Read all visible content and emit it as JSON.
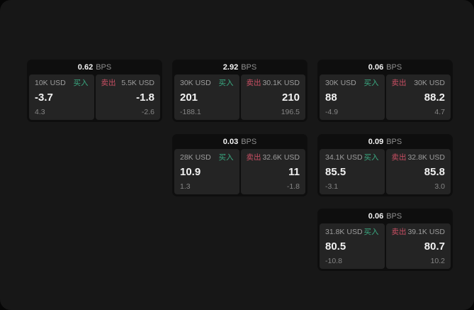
{
  "window": {
    "background": "#060606",
    "panel_background": "#171717"
  },
  "colors": {
    "buy_green": "#3aa981",
    "sell_red": "#c94f63",
    "card_bg": "#0e0e0e",
    "pane_bg": "#242424",
    "value_white": "#f2f2f2",
    "label_gray": "#9d9d9d",
    "sub_gray": "#858585"
  },
  "labels": {
    "bps_unit": "BPS",
    "buy": "买入",
    "sell": "卖出"
  },
  "cards": [
    {
      "bps": "0.62",
      "row": 1,
      "col": 1,
      "buy": {
        "amount": "10K USD",
        "value": "-3.7",
        "sub": "4.3"
      },
      "sell": {
        "amount": "5.5K USD",
        "value": "-1.8",
        "sub": "-2.6"
      }
    },
    {
      "bps": "2.92",
      "row": 1,
      "col": 2,
      "buy": {
        "amount": "30K USD",
        "value": "201",
        "sub": "-188.1"
      },
      "sell": {
        "amount": "30.1K USD",
        "value": "210",
        "sub": "196.5"
      }
    },
    {
      "bps": "0.06",
      "row": 1,
      "col": 3,
      "buy": {
        "amount": "30K USD",
        "value": "88",
        "sub": "-4.9"
      },
      "sell": {
        "amount": "30K USD",
        "value": "88.2",
        "sub": "4.7"
      }
    },
    {
      "bps": "0.03",
      "row": 2,
      "col": 2,
      "buy": {
        "amount": "28K USD",
        "value": "10.9",
        "sub": "1.3"
      },
      "sell": {
        "amount": "32.6K USD",
        "value": "11",
        "sub": "-1.8"
      }
    },
    {
      "bps": "0.09",
      "row": 2,
      "col": 3,
      "buy": {
        "amount": "34.1K USD",
        "value": "85.5",
        "sub": "-3.1"
      },
      "sell": {
        "amount": "32.8K USD",
        "value": "85.8",
        "sub": "3.0"
      }
    },
    {
      "bps": "0.06",
      "row": 3,
      "col": 3,
      "buy": {
        "amount": "31.8K USD",
        "value": "80.5",
        "sub": "-10.8"
      },
      "sell": {
        "amount": "39.1K USD",
        "value": "80.7",
        "sub": "10.2"
      }
    }
  ]
}
